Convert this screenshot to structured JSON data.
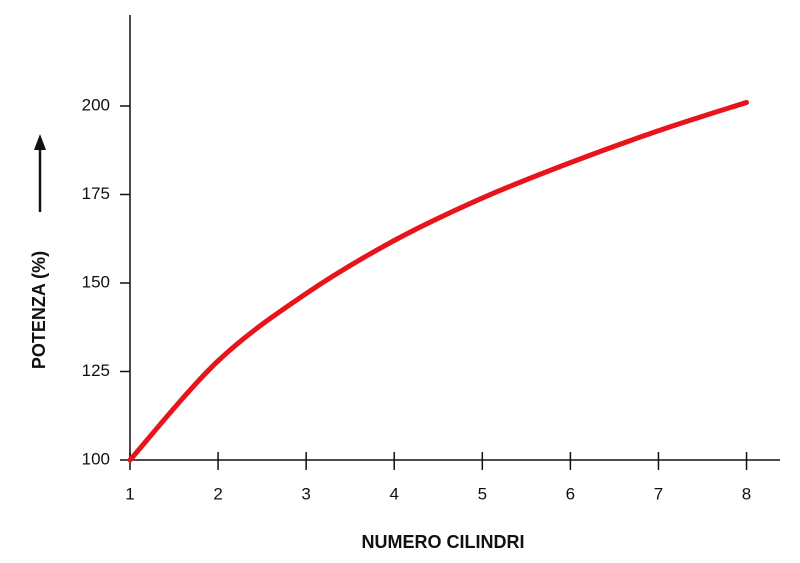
{
  "chart_data": {
    "type": "line",
    "x_label": "NUMERO CILINDRI",
    "y_label": "POTENZA (%)",
    "x": [
      1,
      2,
      3,
      4,
      5,
      6,
      7,
      8
    ],
    "values": [
      100,
      128,
      147,
      162,
      174,
      184,
      193,
      201
    ],
    "color": "#e8141c",
    "xlim": [
      1,
      8.38
    ],
    "xticks": [
      1,
      2,
      3,
      4,
      5,
      6,
      7,
      8
    ],
    "ylim": [
      100,
      225.7
    ],
    "yticks": [
      100,
      125,
      150,
      175,
      200
    ]
  }
}
